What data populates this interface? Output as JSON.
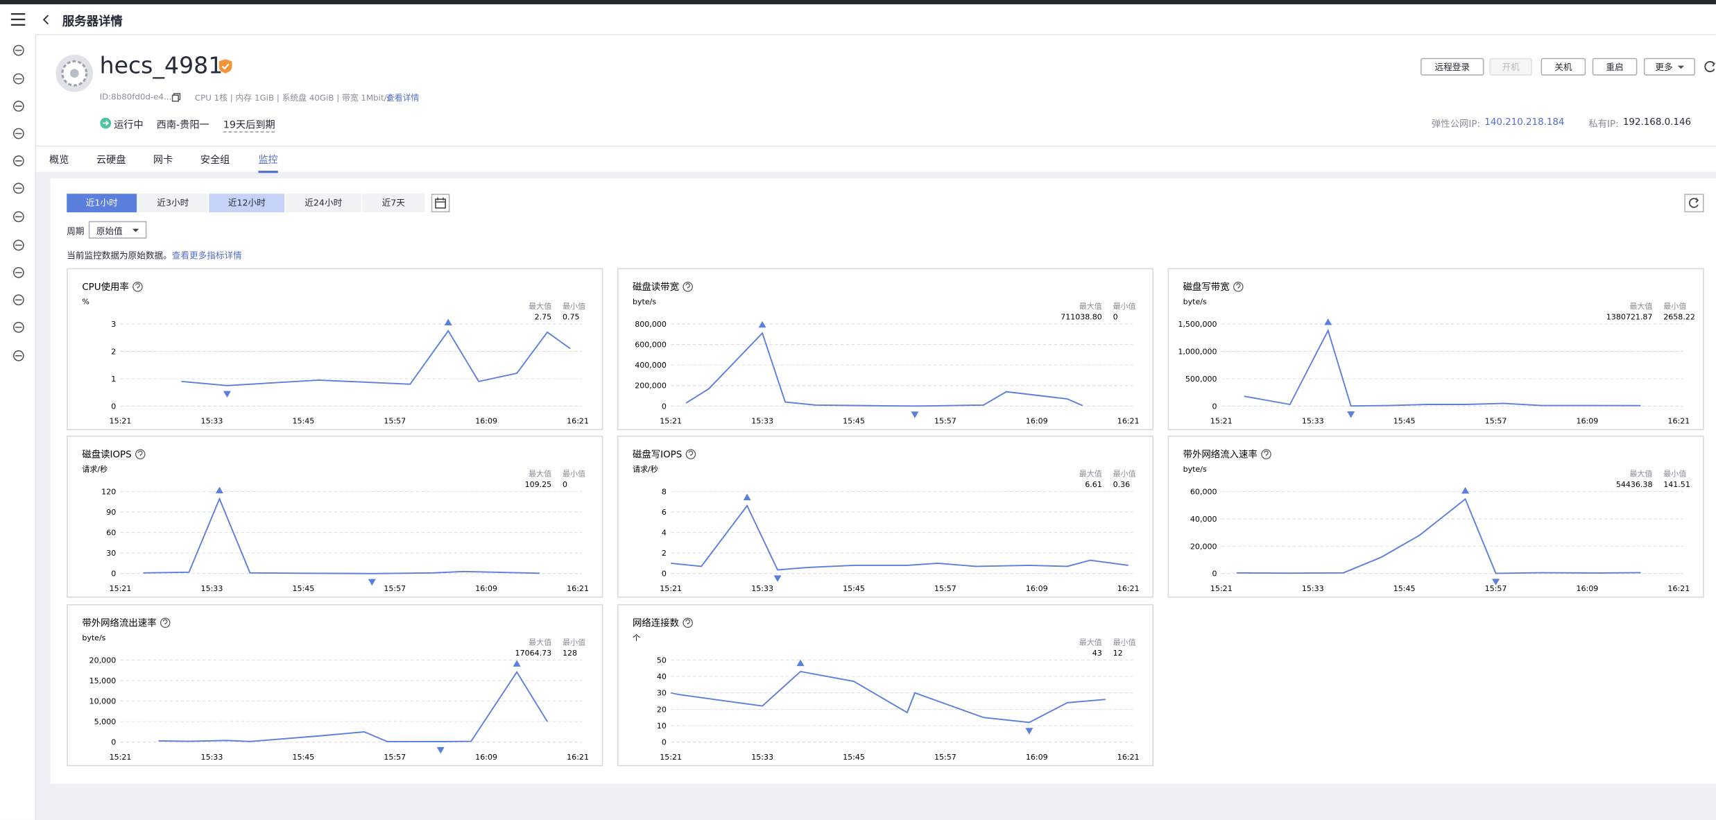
{
  "header": {
    "title": "服务器详情"
  },
  "server": {
    "name": "hecs_4981",
    "id": "ID:8b80fd0d-e4...",
    "specs": "CPU 1核 | 内存 1GiB | 系统盘 40GiB | 带宽 1Mbit/s",
    "specs_link": "查看详情",
    "status": "运行中",
    "region": "西南-贵阳一",
    "expiry": "19天后到期",
    "eip_label": "弹性公网IP:",
    "eip": "140.210.218.184",
    "private_ip_label": "私有IP:",
    "private_ip": "192.168.0.146"
  },
  "actions": [
    "远程登录",
    "开机",
    "关机",
    "重启",
    "更多"
  ],
  "tabs": [
    "概览",
    "云硬盘",
    "网卡",
    "安全组",
    "监控"
  ],
  "time_ranges": [
    "近1小时",
    "近3小时",
    "近12小时",
    "近24小时",
    "近7天"
  ],
  "period_label": "周期",
  "period_value": "原始值",
  "note": "当前监控数据为原始数据。",
  "note_link": "查看更多指标详情",
  "chart_data": [
    {
      "type": "line",
      "title": "CPU使用率",
      "unit": "%",
      "stats": {
        "max_label": "最大值",
        "min_label": "最小值",
        "max": "2.75",
        "min": "0.75"
      },
      "x": [
        "15:29",
        "15:35",
        "15:47",
        "15:59",
        "16:04",
        "16:08",
        "16:13",
        "16:17",
        "16:20"
      ],
      "xlim": [
        "15:21",
        "16:21"
      ],
      "xticks": [
        "15:21",
        "15:33",
        "15:45",
        "15:57",
        "16:09",
        "16:21"
      ],
      "ylim": [
        0,
        3
      ],
      "yticks": [
        0,
        1,
        2,
        3
      ],
      "grid": true,
      "series": [
        {
          "color": "#5b7fdc",
          "values": [
            0.9,
            0.75,
            0.95,
            0.8,
            2.75,
            0.9,
            1.2,
            2.7,
            2.1
          ]
        }
      ]
    },
    {
      "type": "line",
      "title": "磁盘读带宽",
      "unit": "byte/s",
      "stats": {
        "max_label": "最大值",
        "min_label": "最小值",
        "max": "711038.80",
        "min": "0"
      },
      "x": [
        "15:23",
        "15:26",
        "15:33",
        "15:36",
        "15:40",
        "15:46",
        "15:53",
        "15:56",
        "16:02",
        "16:05",
        "16:13",
        "16:15"
      ],
      "xlim": [
        "15:21",
        "16:21"
      ],
      "xticks": [
        "15:21",
        "15:33",
        "15:45",
        "15:57",
        "16:09",
        "16:21"
      ],
      "ylim": [
        0,
        800000
      ],
      "yticks": [
        0,
        {
          "value": 200000,
          "label": "200,000"
        },
        {
          "value": 400000,
          "label": "400,000"
        },
        {
          "value": 600000,
          "label": "600,000"
        },
        {
          "value": 800000,
          "label": "800,000"
        }
      ],
      "grid": true,
      "series": [
        {
          "color": "#5b7fdc",
          "values": [
            30000,
            170000,
            711038.8,
            40000,
            10000,
            5000,
            0,
            3000,
            10000,
            140000,
            70000,
            5000
          ]
        }
      ]
    },
    {
      "type": "line",
      "title": "磁盘写带宽",
      "unit": "byte/s",
      "stats": {
        "max_label": "最大值",
        "min_label": "最小值",
        "max": "1380721.87",
        "min": "2658.22"
      },
      "x": [
        "15:24",
        "15:30",
        "15:35",
        "15:38",
        "15:43",
        "15:48",
        "15:53",
        "15:58",
        "16:03",
        "16:11",
        "16:16"
      ],
      "xlim": [
        "15:21",
        "16:21"
      ],
      "xticks": [
        "15:21",
        "15:33",
        "15:45",
        "15:57",
        "16:09",
        "16:21"
      ],
      "ylim": [
        0,
        1500000
      ],
      "yticks": [
        0,
        {
          "value": 500000,
          "label": "500,000"
        },
        {
          "value": 1000000,
          "label": "1,000,000"
        },
        {
          "value": 1500000,
          "label": "1,500,000"
        }
      ],
      "grid": true,
      "series": [
        {
          "color": "#5b7fdc",
          "values": [
            180000,
            30000,
            1380721.87,
            2658.22,
            10000,
            30000,
            30000,
            50000,
            10000,
            10000,
            8000
          ]
        }
      ]
    },
    {
      "type": "line",
      "title": "磁盘读IOPS",
      "unit": "请求/秒",
      "stats": {
        "max_label": "最大值",
        "min_label": "最小值",
        "max": "109.25",
        "min": "0"
      },
      "x": [
        "15:24",
        "15:30",
        "15:34",
        "15:38",
        "15:45",
        "15:54",
        "16:02",
        "16:06",
        "16:16"
      ],
      "xlim": [
        "15:21",
        "16:21"
      ],
      "xticks": [
        "15:21",
        "15:33",
        "15:45",
        "15:57",
        "16:09",
        "16:21"
      ],
      "ylim": [
        0,
        120
      ],
      "yticks": [
        0,
        30,
        60,
        90,
        120
      ],
      "grid": true,
      "series": [
        {
          "color": "#5b7fdc",
          "values": [
            1,
            2,
            109.25,
            1,
            0.5,
            0,
            1,
            3,
            0.5
          ]
        }
      ]
    },
    {
      "type": "line",
      "title": "磁盘写IOPS",
      "unit": "请求/秒",
      "stats": {
        "max_label": "最大值",
        "min_label": "最小值",
        "max": "6.61",
        "min": "0.36"
      },
      "x": [
        "15:21",
        "15:25",
        "15:31",
        "15:35",
        "15:39",
        "15:45",
        "15:52",
        "15:56",
        "16:01",
        "16:08",
        "16:13",
        "16:16",
        "16:21"
      ],
      "xlim": [
        "15:21",
        "16:21"
      ],
      "xticks": [
        "15:21",
        "15:33",
        "15:45",
        "15:57",
        "16:09",
        "16:21"
      ],
      "ylim": [
        0,
        8
      ],
      "yticks": [
        0,
        2,
        4,
        6,
        8
      ],
      "grid": true,
      "series": [
        {
          "color": "#5b7fdc",
          "values": [
            1.0,
            0.7,
            6.61,
            0.36,
            0.6,
            0.8,
            0.8,
            1.0,
            0.7,
            0.8,
            0.7,
            1.3,
            0.8
          ]
        }
      ]
    },
    {
      "type": "line",
      "title": "带外网络流入速率",
      "unit": "byte/s",
      "stats": {
        "max_label": "最大值",
        "min_label": "最小值",
        "max": "54436.38",
        "min": "141.51"
      },
      "x": [
        "15:23",
        "15:30",
        "15:37",
        "15:42",
        "15:47",
        "15:53",
        "15:57",
        "16:03",
        "16:11",
        "16:16"
      ],
      "xlim": [
        "15:21",
        "16:21"
      ],
      "xticks": [
        "15:21",
        "15:33",
        "15:45",
        "15:57",
        "16:09",
        "16:21"
      ],
      "ylim": [
        0,
        60000
      ],
      "yticks": [
        0,
        {
          "value": 20000,
          "label": "20,000"
        },
        {
          "value": 40000,
          "label": "40,000"
        },
        {
          "value": 60000,
          "label": "60,000"
        }
      ],
      "grid": true,
      "series": [
        {
          "color": "#5b7fdc",
          "values": [
            500,
            300,
            500,
            12000,
            28000,
            54436.38,
            141.51,
            600,
            400,
            700
          ]
        }
      ]
    },
    {
      "type": "line",
      "title": "带外网络流出速率",
      "unit": "byte/s",
      "stats": {
        "max_label": "最大值",
        "min_label": "最小值",
        "max": "17064.73",
        "min": "128"
      },
      "x": [
        "15:26",
        "15:30",
        "15:35",
        "15:38",
        "15:47",
        "15:53",
        "15:56",
        "16:03",
        "16:07",
        "16:13",
        "16:17"
      ],
      "xlim": [
        "15:21",
        "16:21"
      ],
      "xticks": [
        "15:21",
        "15:33",
        "15:45",
        "15:57",
        "16:09",
        "16:21"
      ],
      "ylim": [
        0,
        20000
      ],
      "yticks": [
        0,
        {
          "value": 5000,
          "label": "5,000"
        },
        {
          "value": 10000,
          "label": "10,000"
        },
        {
          "value": 15000,
          "label": "15,000"
        },
        {
          "value": 20000,
          "label": "20,000"
        }
      ],
      "grid": true,
      "series": [
        {
          "color": "#5b7fdc",
          "values": [
            300,
            200,
            400,
            150,
            1500,
            2500,
            130,
            128,
            200,
            17064.73,
            5000
          ]
        }
      ]
    },
    {
      "type": "line",
      "title": "网络连接数",
      "unit": "个",
      "stats": {
        "max_label": "最大值",
        "min_label": "最小值",
        "max": "43",
        "min": "12"
      },
      "x": [
        "15:21",
        "15:22",
        "15:33",
        "15:38",
        "15:45",
        "15:52",
        "15:53",
        "16:02",
        "16:08",
        "16:13",
        "16:18"
      ],
      "xlim": [
        "15:21",
        "16:21"
      ],
      "xticks": [
        "15:21",
        "15:33",
        "15:45",
        "15:57",
        "16:09",
        "16:21"
      ],
      "ylim": [
        0,
        50
      ],
      "yticks": [
        0,
        10,
        20,
        30,
        40,
        50
      ],
      "grid": true,
      "series": [
        {
          "color": "#5b7fdc",
          "values": [
            30,
            29,
            22,
            43,
            37,
            18,
            30,
            15,
            12,
            24,
            26
          ]
        }
      ]
    }
  ]
}
